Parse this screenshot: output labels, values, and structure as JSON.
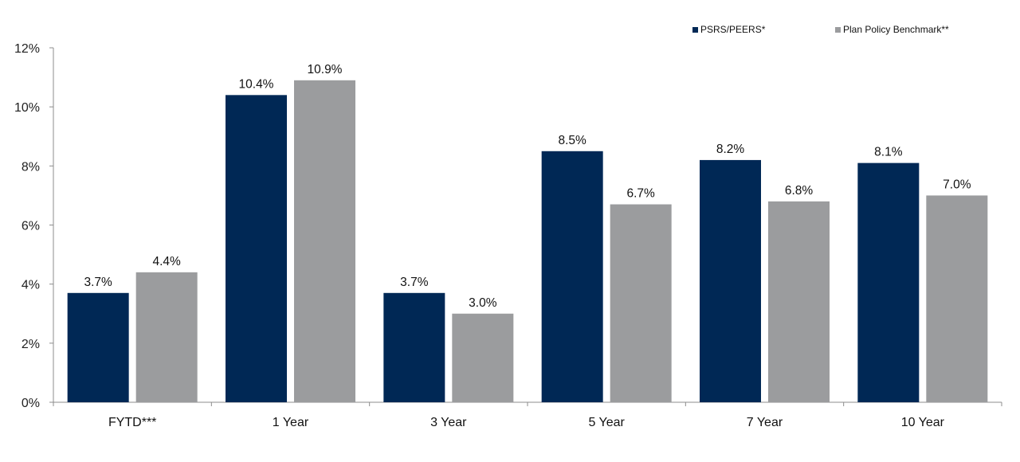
{
  "chart_data": {
    "type": "bar",
    "title": "",
    "xlabel": "",
    "ylabel": "",
    "ylim": [
      0,
      12
    ],
    "yticks": [
      "0%",
      "2%",
      "4%",
      "6%",
      "8%",
      "10%",
      "12%"
    ],
    "grid": false,
    "legend_position": "top-right",
    "categories": [
      "FYTD***",
      "1 Year",
      "3 Year",
      "5 Year",
      "7 Year",
      "10 Year"
    ],
    "series": [
      {
        "name": "PSRS/PEERS*",
        "color": "#002855",
        "values": [
          3.7,
          10.4,
          3.7,
          8.5,
          8.2,
          8.1
        ],
        "labels": [
          "3.7%",
          "10.4%",
          "3.7%",
          "8.5%",
          "8.2%",
          "8.1%"
        ]
      },
      {
        "name": "Plan Policy Benchmark**",
        "color": "#9b9c9e",
        "values": [
          4.4,
          10.9,
          3.0,
          6.7,
          6.8,
          7.0
        ],
        "labels": [
          "4.4%",
          "10.9%",
          "3.0%",
          "6.7%",
          "6.8%",
          "7.0%"
        ]
      }
    ]
  }
}
